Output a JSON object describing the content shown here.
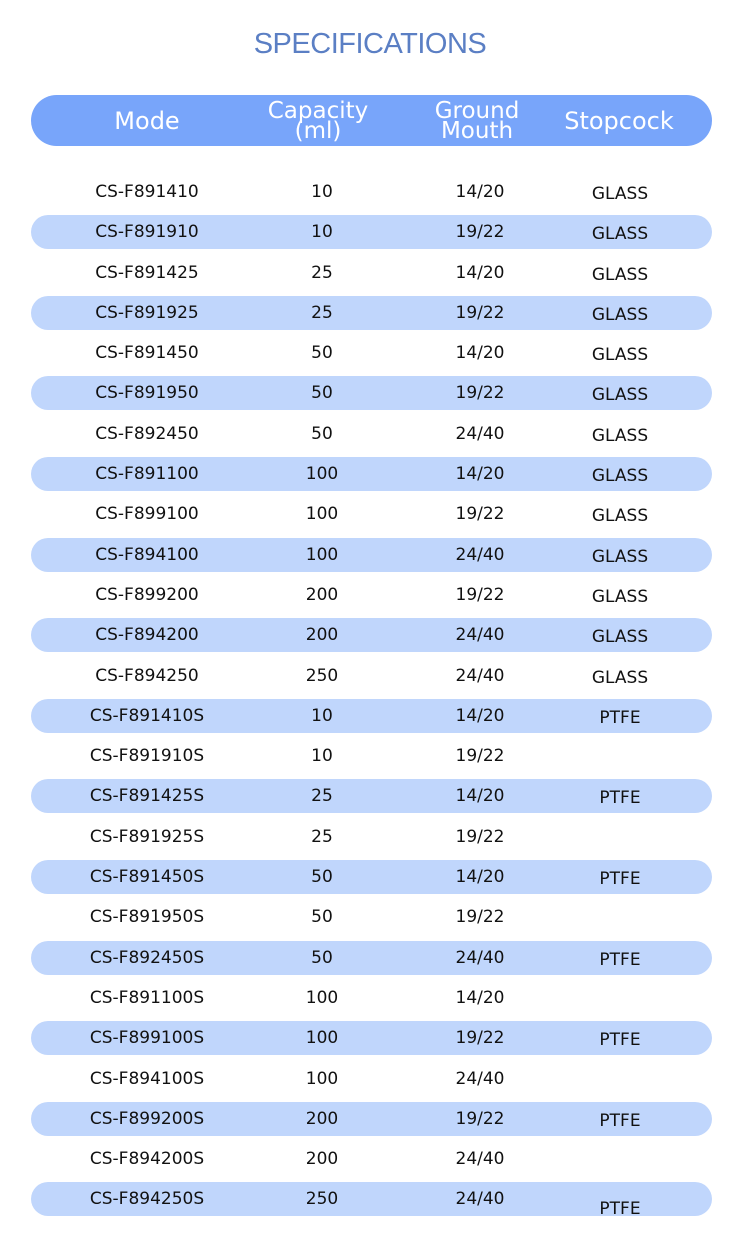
{
  "title": "SPECIFICATIONS",
  "colors": {
    "title": "#5b7fc4",
    "header_bg": "#78a5fa",
    "stripe_bg": "#c0d6fc"
  },
  "header": {
    "mode": "Mode",
    "capacity_line1": "Capacity",
    "capacity_line2": "(ml)",
    "ground_line1": "Ground",
    "ground_line2": "Mouth",
    "stopcock": "Stopcock"
  },
  "rows": [
    {
      "mode": "CS-F891410",
      "capacity": "10",
      "ground": "14/20",
      "stopcock": "GLASS"
    },
    {
      "mode": "CS-F891910",
      "capacity": "10",
      "ground": "19/22",
      "stopcock": "GLASS"
    },
    {
      "mode": "CS-F891425",
      "capacity": "25",
      "ground": "14/20",
      "stopcock": "GLASS"
    },
    {
      "mode": "CS-F891925",
      "capacity": "25",
      "ground": "19/22",
      "stopcock": "GLASS"
    },
    {
      "mode": "CS-F891450",
      "capacity": "50",
      "ground": "14/20",
      "stopcock": "GLASS"
    },
    {
      "mode": "CS-F891950",
      "capacity": "50",
      "ground": "19/22",
      "stopcock": "GLASS"
    },
    {
      "mode": "CS-F892450",
      "capacity": "50",
      "ground": "24/40",
      "stopcock": "GLASS"
    },
    {
      "mode": "CS-F891100",
      "capacity": "100",
      "ground": "14/20",
      "stopcock": "GLASS"
    },
    {
      "mode": "CS-F899100",
      "capacity": "100",
      "ground": "19/22",
      "stopcock": "GLASS"
    },
    {
      "mode": "CS-F894100",
      "capacity": "100",
      "ground": "24/40",
      "stopcock": "GLASS"
    },
    {
      "mode": "CS-F899200",
      "capacity": "200",
      "ground": "19/22",
      "stopcock": "GLASS"
    },
    {
      "mode": "CS-F894200",
      "capacity": "200",
      "ground": "24/40",
      "stopcock": "GLASS"
    },
    {
      "mode": "CS-F894250",
      "capacity": "250",
      "ground": "24/40",
      "stopcock": "GLASS"
    },
    {
      "mode": "CS-F891410S",
      "capacity": "10",
      "ground": "14/20",
      "stopcock": "PTFE"
    },
    {
      "mode": "CS-F891910S",
      "capacity": "10",
      "ground": "19/22",
      "stopcock": ""
    },
    {
      "mode": "CS-F891425S",
      "capacity": "25",
      "ground": "14/20",
      "stopcock": "PTFE"
    },
    {
      "mode": "CS-F891925S",
      "capacity": "25",
      "ground": "19/22",
      "stopcock": ""
    },
    {
      "mode": "CS-F891450S",
      "capacity": "50",
      "ground": "14/20",
      "stopcock": "PTFE"
    },
    {
      "mode": "CS-F891950S",
      "capacity": "50",
      "ground": "19/22",
      "stopcock": ""
    },
    {
      "mode": "CS-F892450S",
      "capacity": "50",
      "ground": "24/40",
      "stopcock": "PTFE"
    },
    {
      "mode": "CS-F891100S",
      "capacity": "100",
      "ground": "14/20",
      "stopcock": ""
    },
    {
      "mode": "CS-F899100S",
      "capacity": "100",
      "ground": "19/22",
      "stopcock": "PTFE"
    },
    {
      "mode": "CS-F894100S",
      "capacity": "100",
      "ground": "24/40",
      "stopcock": ""
    },
    {
      "mode": "CS-F899200S",
      "capacity": "200",
      "ground": "19/22",
      "stopcock": "PTFE"
    },
    {
      "mode": "CS-F894200S",
      "capacity": "200",
      "ground": "24/40",
      "stopcock": ""
    },
    {
      "mode": "CS-F894250S",
      "capacity": "250",
      "ground": "24/40",
      "stopcock": "PTFE"
    }
  ]
}
